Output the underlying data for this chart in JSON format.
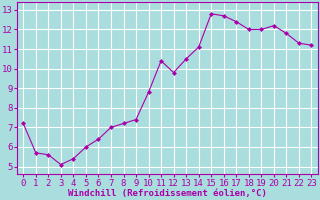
{
  "x": [
    0,
    1,
    2,
    3,
    4,
    5,
    6,
    7,
    8,
    9,
    10,
    11,
    12,
    13,
    14,
    15,
    16,
    17,
    18,
    19,
    20,
    21,
    22,
    23
  ],
  "y": [
    7.2,
    5.7,
    5.6,
    5.1,
    5.4,
    6.0,
    6.4,
    7.0,
    7.2,
    7.4,
    8.8,
    10.4,
    9.8,
    10.5,
    11.1,
    12.8,
    12.7,
    12.4,
    12.0,
    12.0,
    12.2,
    11.8,
    11.3,
    11.2
  ],
  "line_color": "#aa00aa",
  "marker": "D",
  "marker_size": 2,
  "bg_color": "#aadddd",
  "grid_color": "#ffffff",
  "xlabel": "Windchill (Refroidissement éolien,°C)",
  "ylabel_ticks": [
    5,
    6,
    7,
    8,
    9,
    10,
    11,
    12,
    13
  ],
  "xlim": [
    -0.5,
    23.5
  ],
  "ylim": [
    4.6,
    13.4
  ],
  "xlabel_fontsize": 6.5,
  "tick_fontsize": 6.5,
  "tick_color": "#aa00aa",
  "label_color": "#aa00aa",
  "spine_color": "#aa00aa"
}
